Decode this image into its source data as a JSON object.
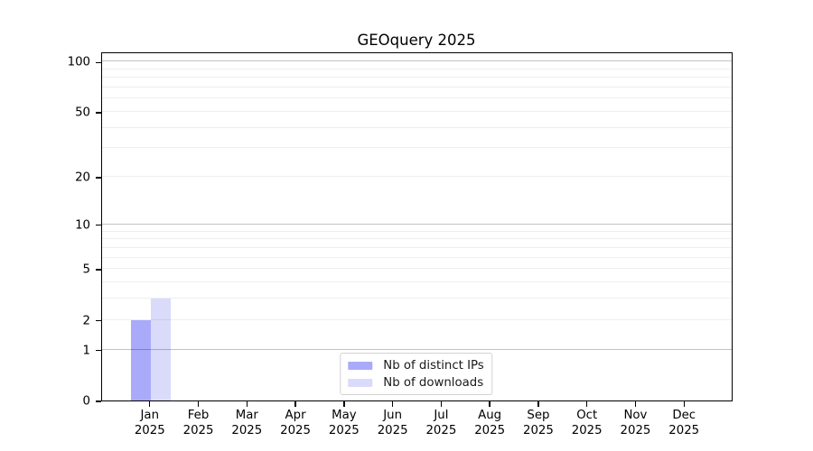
{
  "chart_data": {
    "type": "bar",
    "title": "GEOquery 2025",
    "x_categories": [
      {
        "month": "Jan",
        "year": "2025"
      },
      {
        "month": "Feb",
        "year": "2025"
      },
      {
        "month": "Mar",
        "year": "2025"
      },
      {
        "month": "Apr",
        "year": "2025"
      },
      {
        "month": "May",
        "year": "2025"
      },
      {
        "month": "Jun",
        "year": "2025"
      },
      {
        "month": "Jul",
        "year": "2025"
      },
      {
        "month": "Aug",
        "year": "2025"
      },
      {
        "month": "Sep",
        "year": "2025"
      },
      {
        "month": "Oct",
        "year": "2025"
      },
      {
        "month": "Nov",
        "year": "2025"
      },
      {
        "month": "Dec",
        "year": "2025"
      }
    ],
    "series": [
      {
        "name": "Nb of distinct IPs",
        "color": "#aaaafa",
        "values": [
          2,
          0,
          0,
          0,
          0,
          0,
          0,
          0,
          0,
          0,
          0,
          0
        ]
      },
      {
        "name": "Nb of downloads",
        "color": "#dadafa",
        "values": [
          3,
          0,
          0,
          0,
          0,
          0,
          0,
          0,
          0,
          0,
          0,
          0
        ]
      }
    ],
    "y_axis": {
      "scale": "log10(value+1)",
      "ylim": [
        0,
        115
      ],
      "tick_values": [
        0,
        1,
        2,
        5,
        10,
        20,
        50,
        100
      ],
      "major_gridlines": [
        1,
        10,
        100
      ],
      "minor_gridlines": [
        2,
        3,
        4,
        5,
        6,
        7,
        8,
        9,
        20,
        30,
        40,
        50,
        60,
        70,
        80,
        90
      ]
    },
    "legend": {
      "position": "bottom-center"
    },
    "colors": {
      "major_grid": "rgba(0,0,0,0.24)",
      "minor_grid": "rgba(0,0,0,0.065)",
      "spine": "#000000"
    },
    "grid": true
  }
}
